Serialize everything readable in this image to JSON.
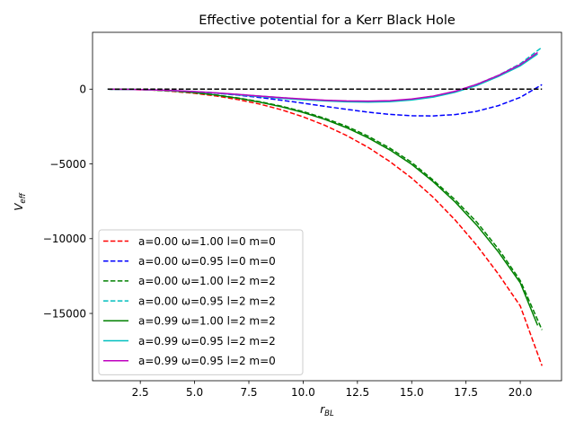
{
  "chart_data": {
    "type": "line",
    "title": "Effective potential for a Kerr Black Hole",
    "xlabel": "r",
    "xlabel_sub": "BL",
    "ylabel": "V",
    "ylabel_sub": "eff",
    "xlim": [
      0.3,
      21.9
    ],
    "ylim": [
      -19500,
      3800
    ],
    "xticks": [
      2.5,
      5.0,
      7.5,
      10.0,
      12.5,
      15.0,
      17.5,
      20.0
    ],
    "xtick_labels": [
      "2.5",
      "5.0",
      "7.5",
      "10.0",
      "12.5",
      "15.0",
      "17.5",
      "20.0"
    ],
    "yticks": [
      0,
      -5000,
      -10000,
      -15000
    ],
    "ytick_labels": [
      "0",
      "−5000",
      "−10000",
      "−15000"
    ],
    "legend_position": "lower-left",
    "grid": false,
    "series": [
      {
        "name": "a=0.00 ω=1.00 l=0 m=0",
        "color": "#ff0000",
        "dash": "dashed",
        "x": [
          1,
          2,
          3,
          4,
          5,
          6,
          7,
          8,
          9,
          10,
          11,
          12,
          13,
          14,
          15,
          16,
          17,
          18,
          19,
          20,
          21
        ],
        "y": [
          0,
          -20,
          -60,
          -150,
          -280,
          -460,
          -700,
          -1000,
          -1380,
          -1850,
          -2420,
          -3100,
          -3900,
          -4850,
          -5950,
          -7250,
          -8750,
          -10450,
          -12380,
          -14500,
          -18500
        ]
      },
      {
        "name": "a=0.00 ω=0.95 l=0 m=0",
        "color": "#0000ff",
        "dash": "dashed",
        "x": [
          1,
          2,
          3,
          4,
          5,
          6,
          7,
          8,
          9,
          10,
          11,
          12,
          13,
          14,
          15,
          16,
          17,
          18,
          19,
          20,
          21
        ],
        "y": [
          0,
          -10,
          -40,
          -90,
          -170,
          -270,
          -400,
          -560,
          -740,
          -940,
          -1150,
          -1350,
          -1540,
          -1690,
          -1780,
          -1790,
          -1700,
          -1480,
          -1100,
          -550,
          300
        ]
      },
      {
        "name": "a=0.00 ω=1.00 l=2 m=2",
        "color": "#008000",
        "dash": "dashed",
        "x": [
          1,
          2,
          3,
          4,
          5,
          6,
          7,
          8,
          9,
          10,
          11,
          12,
          13,
          14,
          15,
          16,
          17,
          18,
          19,
          20,
          21
        ],
        "y": [
          0,
          -10,
          -50,
          -120,
          -230,
          -390,
          -590,
          -840,
          -1140,
          -1500,
          -1950,
          -2480,
          -3150,
          -3950,
          -4900,
          -6100,
          -7400,
          -8900,
          -10700,
          -12800,
          -16100
        ]
      },
      {
        "name": "a=0.00 ω=0.95 l=2 m=2",
        "color": "#00bfbf",
        "dash": "dashed",
        "x": [
          1,
          2,
          3,
          4,
          5,
          6,
          7,
          8,
          9,
          10,
          11,
          12,
          13,
          14,
          15,
          16,
          17,
          18,
          19,
          20,
          21
        ],
        "y": [
          0,
          -10,
          -40,
          -90,
          -160,
          -250,
          -350,
          -460,
          -570,
          -670,
          -750,
          -800,
          -820,
          -790,
          -680,
          -470,
          -150,
          330,
          930,
          1700,
          2800
        ]
      },
      {
        "name": "a=0.99 ω=1.00 l=2 m=2",
        "color": "#008000",
        "dash": "solid",
        "x": [
          1,
          2,
          3,
          4,
          5,
          6,
          7,
          8,
          9,
          10,
          11,
          12,
          13,
          14,
          15,
          16,
          17,
          18,
          19,
          20,
          20.8
        ],
        "y": [
          0,
          -10,
          -50,
          -120,
          -240,
          -400,
          -610,
          -870,
          -1180,
          -1560,
          -2020,
          -2580,
          -3260,
          -4070,
          -5030,
          -6200,
          -7550,
          -9100,
          -10900,
          -12950,
          -15800
        ]
      },
      {
        "name": "a=0.99 ω=0.95 l=2 m=2",
        "color": "#00bfbf",
        "dash": "solid",
        "x": [
          1,
          2,
          3,
          4,
          5,
          6,
          7,
          8,
          9,
          10,
          11,
          12,
          13,
          14,
          15,
          16,
          17,
          18,
          19,
          20,
          20.8
        ],
        "y": [
          0,
          -10,
          -40,
          -100,
          -170,
          -270,
          -380,
          -500,
          -610,
          -710,
          -790,
          -850,
          -870,
          -840,
          -730,
          -530,
          -210,
          250,
          850,
          1560,
          2350
        ]
      },
      {
        "name": "a=0.99 ω=0.95 l=2 m=0",
        "color": "#bf00bf",
        "dash": "solid",
        "x": [
          1,
          2,
          3,
          4,
          5,
          6,
          7,
          8,
          9,
          10,
          11,
          12,
          13,
          14,
          15,
          16,
          17,
          18,
          19,
          20,
          20.8
        ],
        "y": [
          0,
          -10,
          -40,
          -90,
          -160,
          -250,
          -350,
          -460,
          -570,
          -660,
          -740,
          -790,
          -800,
          -770,
          -660,
          -460,
          -140,
          320,
          920,
          1640,
          2450
        ]
      },
      {
        "name": "",
        "color": "#000000",
        "dash": "dashed",
        "legend": false,
        "x": [
          1,
          21
        ],
        "y": [
          0,
          0
        ]
      }
    ]
  }
}
